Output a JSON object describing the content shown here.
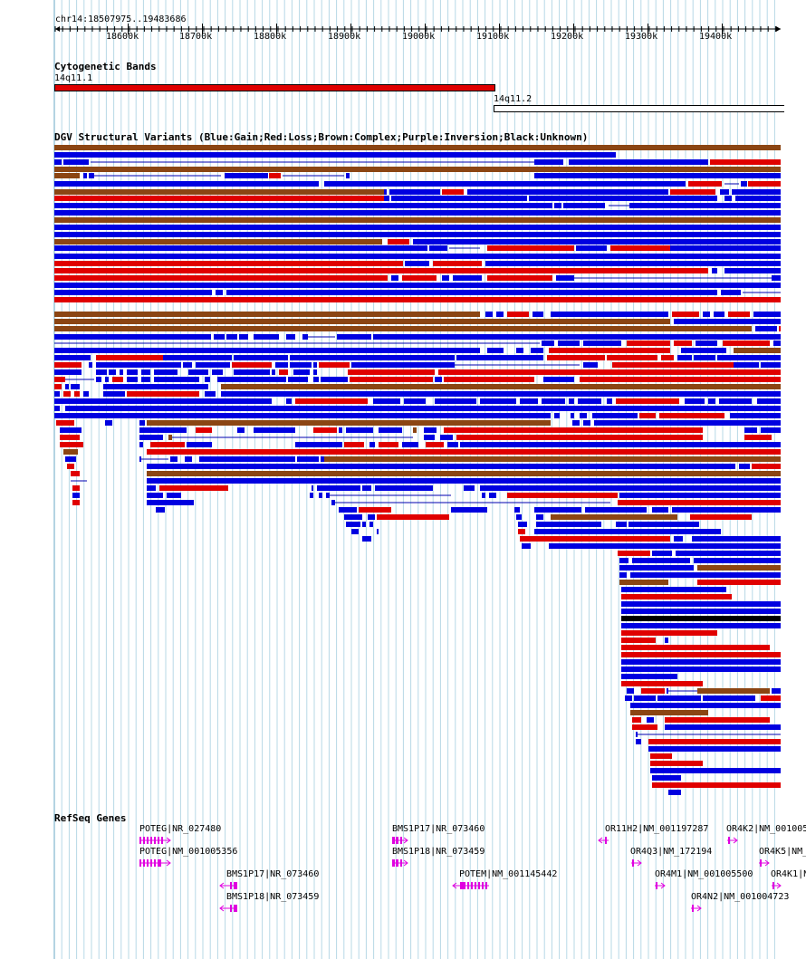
{
  "ruler": {
    "locus": "chr14:18507975..19483686",
    "ticks": [
      "18600k",
      "18700k",
      "18800k",
      "18900k",
      "19000k",
      "19100k",
      "19200k",
      "19300k",
      "19400k"
    ]
  },
  "cytobands": {
    "title": "Cytogenetic Bands",
    "bands": [
      {
        "label": "14q11.1",
        "color": "#e00000"
      },
      {
        "label": "14q11.2",
        "color": "#ffffff"
      }
    ]
  },
  "dgv": {
    "title": "DGV Structural Variants (Blue:Gain;Red:Loss;Brown:Complex;Purple:Inversion;Black:Unknown)",
    "colors": {
      "gain": "#0000e0",
      "loss": "#e00000",
      "complex": "#8b4513",
      "inversion": "#800080",
      "unknown": "#000000"
    }
  },
  "refseq": {
    "title": "RefSeq Genes",
    "color": "#e000e0",
    "genes": [
      {
        "label": "POTEG|NR_027480"
      },
      {
        "label": "POTEG|NM_001005356"
      },
      {
        "label": "BMS1P17|NR_073460"
      },
      {
        "label": "BMS1P18|NR_073459"
      },
      {
        "label": "BMS1P17|NR_073460"
      },
      {
        "label": "BMS1P18|NR_073459"
      },
      {
        "label": "POTEM|NM_001145442"
      },
      {
        "label": "OR11H2|NM_001197287"
      },
      {
        "label": "OR4Q3|NM_172194"
      },
      {
        "label": "OR4M1|NM_001005500"
      },
      {
        "label": "OR4N2|NM_001004723"
      },
      {
        "label": "OR4K2|NM_001005"
      },
      {
        "label": "OR4K5|NM_"
      },
      {
        "label": "OR4K1|N"
      }
    ]
  }
}
